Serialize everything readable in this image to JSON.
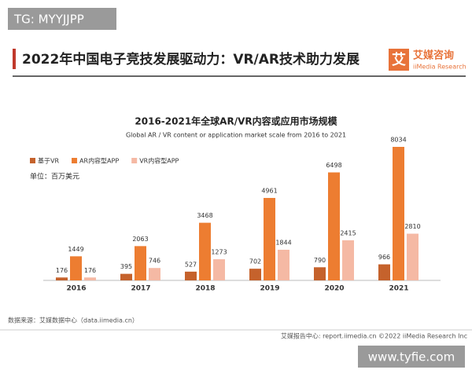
{
  "watermark": "TG: MYYJJPP",
  "header_title": "2022年中国电子竞技发展驱动力：VR/AR技术助力发展",
  "brand_mark": "艾",
  "brand": "艾媒咨询",
  "brand_sub": "iiMedia Research",
  "chart_data": {
    "type": "bar",
    "title": "2016-2021年全球AR/VR内容或应用市场规模",
    "subtitle": "Global AR / VR content or application market scale from 2016 to 2021",
    "unit": "单位：百万美元",
    "categories": [
      "2016",
      "2017",
      "2018",
      "2019",
      "2020",
      "2021"
    ],
    "series": [
      {
        "name": "基于VR",
        "color": "#c5622c",
        "values": [
          176,
          395,
          527,
          702,
          790,
          966
        ]
      },
      {
        "name": "AR内容型APP",
        "color": "#ed7d31",
        "values": [
          1449,
          2063,
          3468,
          4961,
          6498,
          8034
        ]
      },
      {
        "name": "VR内容型APP",
        "color": "#f5b9a4",
        "values": [
          176,
          746,
          1273,
          1844,
          2415,
          2810
        ]
      }
    ],
    "legend": "top-left"
  },
  "source": "数据来源：艾媒数据中心（data.iimedia.cn）",
  "footer": "艾媒报告中心: report.iimedia.cn  ©2022  iiMedia Research  Inc",
  "site_watermark": "www.tyfie.com"
}
